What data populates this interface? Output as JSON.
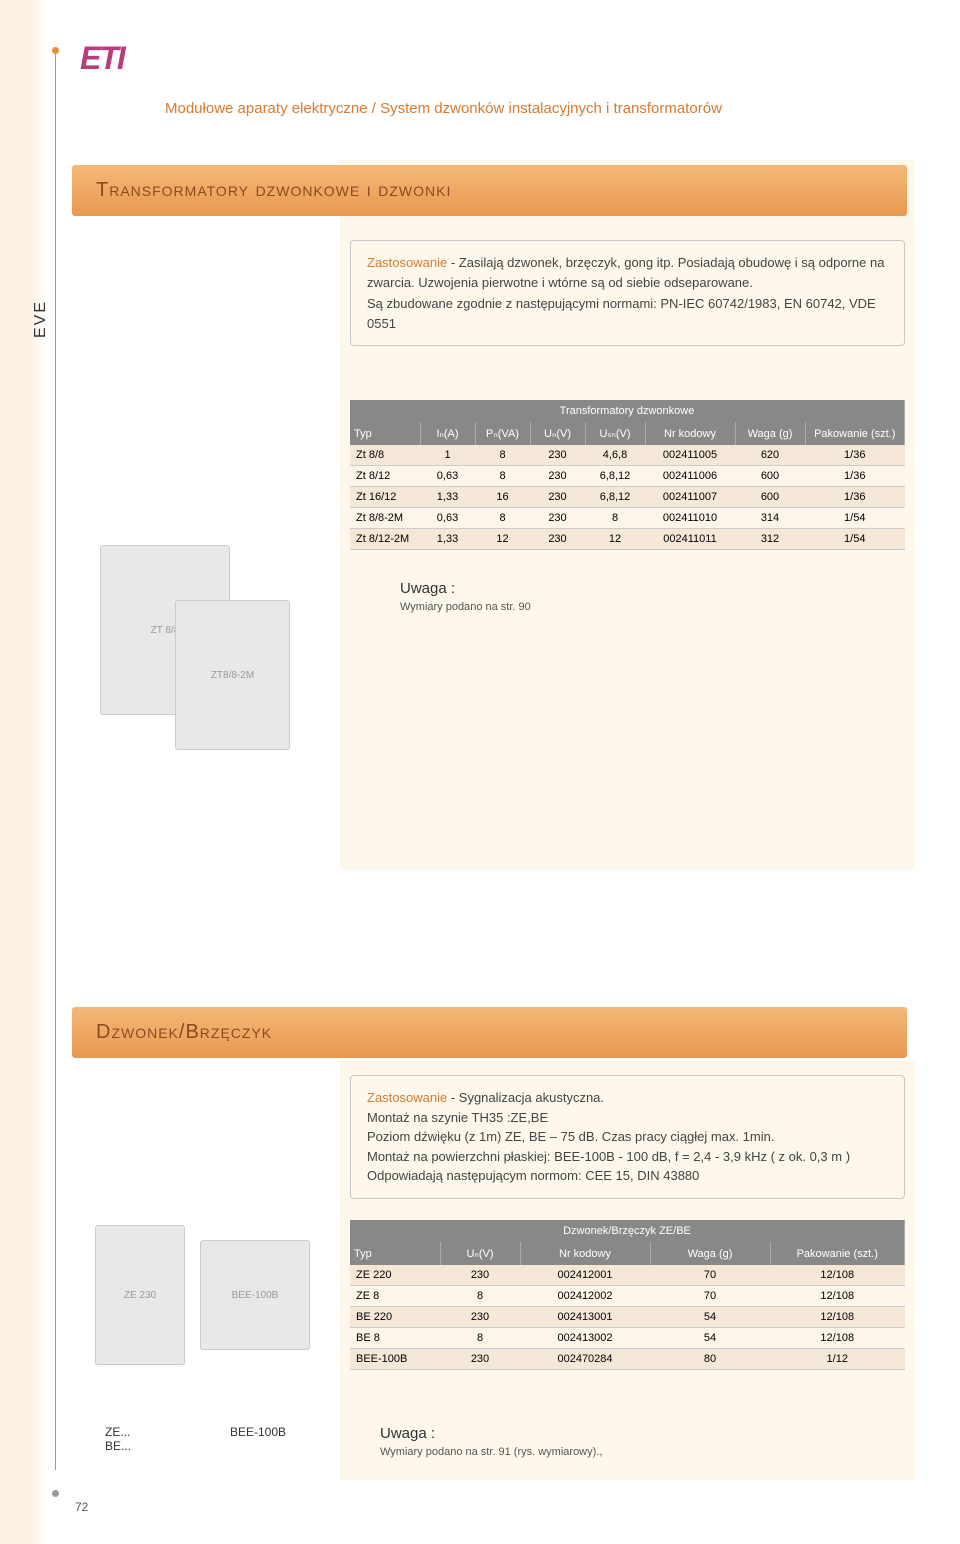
{
  "logo": "ETI",
  "breadcrumb": "Modułowe aparaty elektryczne / System dzwonków instalacyjnych i transformatorów",
  "side_label": "EVE",
  "page_number": "72",
  "section1": {
    "title": "Transformatory dzwonkowe i dzwonki",
    "app_label": "Zastosowanie",
    "app_text": " - Zasilają dzwonek, brzęczyk, gong itp. Posiadają obudowę i są odporne na zwarcia. Uzwojenia pierwotne i wtórne są od siebie odseparowane.",
    "app_text2": "Są zbudowane zgodnie z następującymi normami: PN-IEC 60742/1983, EN 60742, VDE 0551",
    "table_title": "Transformatory dzwonkowe",
    "headers": [
      "Typ",
      "Iₙ(A)",
      "Pₙ(VA)",
      "Uₙ(V)",
      "Uₛₙ(V)",
      "Nr kodowy",
      "Waga (g)",
      "Pakowanie (szt.)"
    ],
    "rows": [
      [
        "Zt 8/8",
        "1",
        "8",
        "230",
        "4,6,8",
        "002411005",
        "620",
        "1/36"
      ],
      [
        "Zt 8/12",
        "0,63",
        "8",
        "230",
        "6,8,12",
        "002411006",
        "600",
        "1/36"
      ],
      [
        "Zt 16/12",
        "1,33",
        "16",
        "230",
        "6,8,12",
        "002411007",
        "600",
        "1/36"
      ],
      [
        "Zt 8/8-2M",
        "0,63",
        "8",
        "230",
        "8",
        "002411010",
        "314",
        "1/54"
      ],
      [
        "Zt 8/12-2M",
        "1,33",
        "12",
        "230",
        "12",
        "002411011",
        "312",
        "1/54"
      ]
    ],
    "note_title": "Uwaga :",
    "note_text": "Wymiary podano na str. 90",
    "img1_label": "ZT 8/8",
    "img1b_label": "ZT8/8-2M"
  },
  "section2": {
    "title": "Dzwonek/Brzęczyk",
    "app_label": "Zastosowanie",
    "app_text": " - Sygnalizacja akustyczna.",
    "app_lines": [
      "Montaż na szynie TH35 :ZE,BE",
      "Poziom dźwięku (z 1m) ZE, BE – 75 dB. Czas pracy ciągłej max. 1min.",
      "Montaż na powierzchni płaskiej: BEE-100B - 100 dB,  f = 2,4 - 3,9 kHz ( z ok. 0,3 m )",
      "Odpowiadają następującym normom:  CEE 15, DIN 43880"
    ],
    "table_title": "Dzwonek/Brzęczyk ZE/BE",
    "headers": [
      "Typ",
      "Uₙ(V)",
      "Nr kodowy",
      "Waga (g)",
      "Pakowanie (szt.)"
    ],
    "rows": [
      [
        "ZE 220",
        "230",
        "002412001",
        "70",
        "12/108"
      ],
      [
        "ZE 8",
        "8",
        "002412002",
        "70",
        "12/108"
      ],
      [
        "BE 220",
        "230",
        "002413001",
        "54",
        "12/108"
      ],
      [
        "BE 8",
        "8",
        "002413002",
        "54",
        "12/108"
      ],
      [
        "BEE-100B",
        "230",
        "002470284",
        "80",
        "1/12"
      ]
    ],
    "cap1": "ZE...\nBE...",
    "cap2": "BEE-100B",
    "note_title": "Uwaga :",
    "note_text": "Wymiary podano na str. 91 (rys. wymiarowy).,",
    "img2a_label": "ZE 230",
    "img2b_label": "BEE-100B"
  },
  "colors": {
    "orange_header": "#e89850",
    "orange_accent": "#d97a2f",
    "grey_header": "#888888",
    "row_odd": "#f5e8d8",
    "row_even": "#fdf5ea",
    "cream": "#fef7eb",
    "logo": "#b83d7a"
  }
}
